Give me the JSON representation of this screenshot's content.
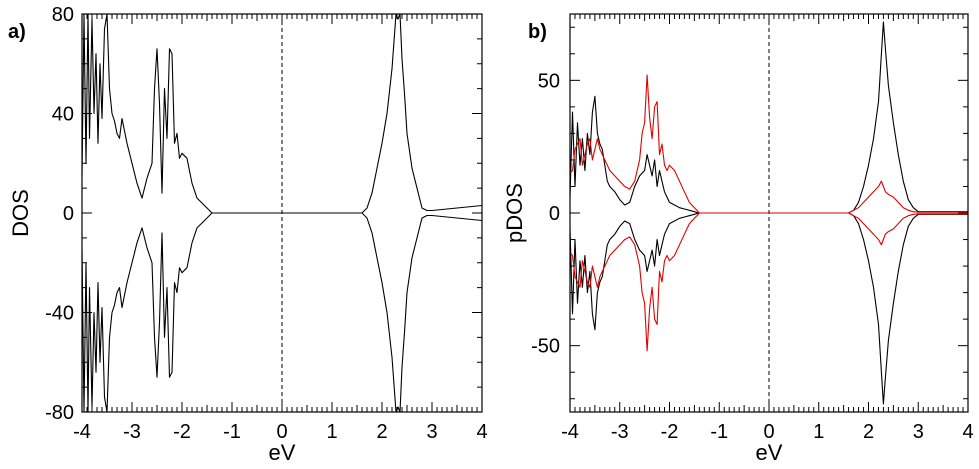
{
  "colors": {
    "total": "#000000",
    "red": "#e00000"
  },
  "chart_data": [
    {
      "type": "line",
      "panel_label": "a)",
      "xlabel": "eV",
      "ylabel": "DOS",
      "xlim": [
        -4,
        4
      ],
      "ylim": [
        -80,
        80
      ],
      "x_ticks": [
        "-4",
        "-3",
        "-2",
        "-1",
        "0",
        "1",
        "2",
        "3",
        "4"
      ],
      "y_ticks": [
        "80",
        "40",
        "0",
        "-40",
        "-80"
      ],
      "y_tick_values": [
        80,
        40,
        0,
        -40,
        -80
      ],
      "fermi_level": 0,
      "mirror": true,
      "series": [
        {
          "color": "#000000",
          "x": [
            -4.0,
            -3.96,
            -3.92,
            -3.88,
            -3.85,
            -3.8,
            -3.76,
            -3.72,
            -3.68,
            -3.64,
            -3.6,
            -3.55,
            -3.5,
            -3.45,
            -3.4,
            -3.35,
            -3.3,
            -3.25,
            -3.2,
            -3.1,
            -3.0,
            -2.9,
            -2.8,
            -2.7,
            -2.6,
            -2.55,
            -2.5,
            -2.45,
            -2.4,
            -2.35,
            -2.3,
            -2.25,
            -2.2,
            -2.15,
            -2.1,
            -2.05,
            -2.0,
            -1.9,
            -1.8,
            -1.7,
            -1.6,
            -1.5,
            -1.45,
            -1.4,
            -1.0,
            0.0,
            1.0,
            1.6,
            1.7,
            1.8,
            1.9,
            2.0,
            2.1,
            2.2,
            2.28,
            2.32,
            2.36,
            2.4,
            2.45,
            2.5,
            2.6,
            2.7,
            2.8,
            2.9,
            3.0,
            3.5,
            4.0
          ],
          "y": [
            15,
            80,
            20,
            80,
            30,
            78,
            40,
            64,
            28,
            60,
            38,
            74,
            80,
            50,
            40,
            37,
            32,
            30,
            38,
            28,
            20,
            12,
            6,
            14,
            20,
            50,
            66,
            44,
            8,
            50,
            30,
            66,
            64,
            28,
            32,
            22,
            24,
            22,
            12,
            6,
            4,
            2,
            1,
            0,
            0,
            0,
            0,
            0,
            2,
            8,
            18,
            28,
            40,
            58,
            80,
            78,
            80,
            62,
            48,
            32,
            18,
            10,
            2,
            1,
            1,
            2,
            3
          ]
        }
      ]
    },
    {
      "type": "line",
      "panel_label": "b)",
      "xlabel": "eV",
      "ylabel": "pDOS",
      "xlim": [
        -4,
        4
      ],
      "ylim": [
        -75,
        75
      ],
      "x_ticks": [
        "-4",
        "-3",
        "-2",
        "-1",
        "0",
        "1",
        "2",
        "3",
        "4"
      ],
      "y_ticks": [
        "50",
        "0",
        "-50"
      ],
      "y_tick_values": [
        50,
        0,
        -50
      ],
      "fermi_level": 0,
      "mirror": true,
      "series": [
        {
          "color": "#000000",
          "x": [
            -4.0,
            -3.95,
            -3.9,
            -3.85,
            -3.8,
            -3.75,
            -3.7,
            -3.65,
            -3.6,
            -3.55,
            -3.5,
            -3.45,
            -3.4,
            -3.35,
            -3.3,
            -3.25,
            -3.2,
            -3.1,
            -3.0,
            -2.9,
            -2.8,
            -2.7,
            -2.6,
            -2.5,
            -2.45,
            -2.4,
            -2.35,
            -2.3,
            -2.25,
            -2.2,
            -2.15,
            -2.1,
            -2.05,
            -2.0,
            -1.9,
            -1.8,
            -1.7,
            -1.6,
            -1.5,
            -1.45,
            -1.4,
            -1.0,
            0.0,
            1.0,
            1.6,
            1.7,
            1.8,
            1.9,
            2.0,
            2.1,
            2.2,
            2.26,
            2.3,
            2.34,
            2.4,
            2.5,
            2.6,
            2.7,
            2.8,
            2.9,
            3.0,
            3.5,
            4.0
          ],
          "y": [
            6,
            38,
            10,
            34,
            18,
            28,
            16,
            30,
            22,
            38,
            44,
            30,
            26,
            24,
            18,
            12,
            10,
            8,
            5,
            3,
            4,
            10,
            14,
            16,
            22,
            18,
            14,
            20,
            10,
            16,
            12,
            8,
            6,
            4,
            3,
            2,
            1.5,
            1,
            0.5,
            0.2,
            0,
            0,
            0,
            0,
            0,
            1,
            4,
            10,
            18,
            28,
            42,
            60,
            72,
            62,
            48,
            34,
            22,
            12,
            5,
            2,
            0.5,
            0.5,
            0.5
          ]
        },
        {
          "color": "#e00000",
          "x": [
            -4.0,
            -3.95,
            -3.9,
            -3.85,
            -3.8,
            -3.75,
            -3.7,
            -3.65,
            -3.6,
            -3.55,
            -3.5,
            -3.45,
            -3.4,
            -3.35,
            -3.3,
            -3.25,
            -3.2,
            -3.1,
            -3.0,
            -2.9,
            -2.8,
            -2.7,
            -2.6,
            -2.55,
            -2.5,
            -2.45,
            -2.4,
            -2.35,
            -2.3,
            -2.25,
            -2.2,
            -2.15,
            -2.1,
            -2.05,
            -2.0,
            -1.9,
            -1.8,
            -1.7,
            -1.6,
            -1.5,
            -1.45,
            -1.4,
            -1.0,
            0.0,
            1.0,
            1.6,
            1.7,
            1.8,
            1.9,
            2.0,
            2.1,
            2.2,
            2.26,
            2.3,
            2.34,
            2.4,
            2.5,
            2.6,
            2.7,
            2.8,
            2.9,
            3.0,
            3.5,
            4.0
          ],
          "y": [
            15,
            16,
            24,
            26,
            28,
            18,
            22,
            26,
            28,
            20,
            24,
            28,
            24,
            22,
            20,
            18,
            16,
            14,
            12,
            10,
            9,
            12,
            20,
            30,
            34,
            52,
            36,
            28,
            40,
            42,
            22,
            26,
            18,
            16,
            18,
            16,
            12,
            8,
            4,
            2,
            1,
            0,
            0,
            0,
            0,
            0,
            1,
            2,
            4,
            6,
            8,
            10,
            12,
            10,
            8,
            7,
            6,
            4,
            2,
            1,
            0.5,
            0.3,
            0.3,
            0.3
          ]
        }
      ]
    }
  ]
}
